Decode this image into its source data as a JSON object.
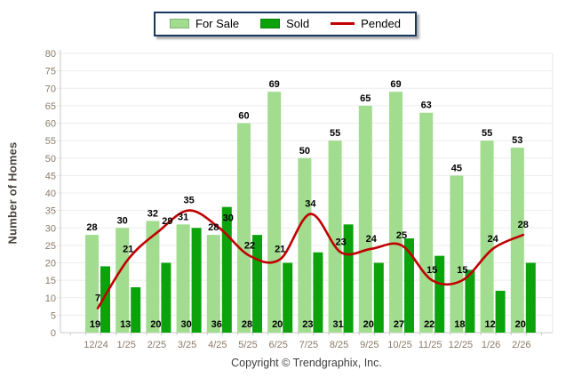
{
  "y_axis_title": "Number of Homes",
  "footer": {
    "copyright": "Copyright © Trendgraphix, Inc."
  },
  "chart_data": {
    "type": "bar",
    "subtype": "grouped-bars-with-line-overlay",
    "title": "",
    "categories": [
      "12/24",
      "1/25",
      "2/25",
      "3/25",
      "4/25",
      "5/25",
      "6/25",
      "7/25",
      "8/25",
      "9/25",
      "10/25",
      "11/25",
      "12/25",
      "1/26",
      "2/26"
    ],
    "series": [
      {
        "name": "For Sale",
        "type": "bar",
        "color": "#A1DC8F",
        "values": [
          28,
          30,
          32,
          31,
          28,
          60,
          69,
          50,
          55,
          65,
          69,
          63,
          45,
          55,
          53
        ]
      },
      {
        "name": "Sold",
        "type": "bar",
        "color": "#0CA20C",
        "values": [
          19,
          13,
          20,
          30,
          36,
          28,
          20,
          23,
          31,
          20,
          27,
          22,
          18,
          12,
          20
        ]
      },
      {
        "name": "Pended",
        "type": "line",
        "color": "#C00000",
        "values": [
          7,
          21,
          29,
          35,
          30,
          22,
          21,
          34,
          23,
          24,
          25,
          15,
          15,
          24,
          28
        ]
      }
    ],
    "xlabel": "",
    "ylabel": "Number of Homes",
    "ylim": [
      0,
      80
    ],
    "yticks": [
      0,
      5,
      10,
      15,
      20,
      25,
      30,
      35,
      40,
      45,
      50,
      55,
      60,
      65,
      70,
      75,
      80
    ],
    "grid": true,
    "legend_position": "top-center",
    "data_labels": true,
    "colors": {
      "gridline": "#EDEDED",
      "axis_line": "#C9C9C9",
      "tick_label": "#8B7A68",
      "legend_border": "#17375E"
    }
  }
}
